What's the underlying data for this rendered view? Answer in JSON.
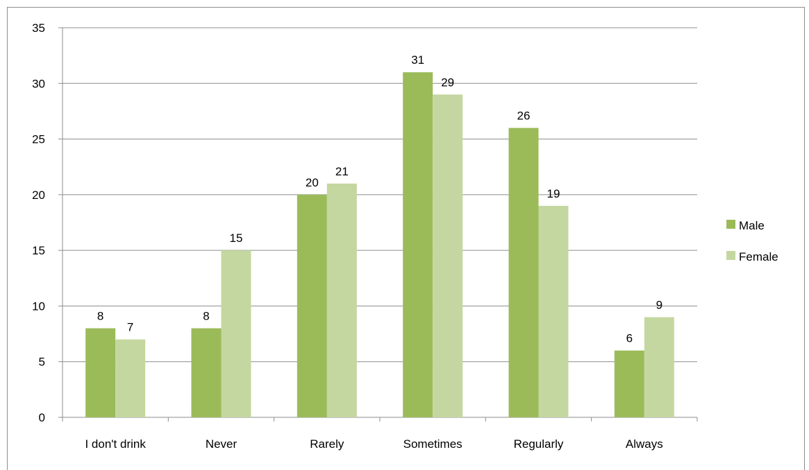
{
  "chart_data": {
    "type": "bar",
    "categories": [
      "I don't drink",
      "Never",
      "Rarely",
      "Sometimes",
      "Regularly",
      "Always"
    ],
    "series": [
      {
        "name": "Male",
        "values": [
          8,
          8,
          20,
          31,
          26,
          6
        ],
        "color": "#9bbb59"
      },
      {
        "name": "Female",
        "values": [
          7,
          15,
          21,
          29,
          19,
          9
        ],
        "color": "#c4d7a0"
      }
    ],
    "ylim": [
      0,
      35
    ],
    "yticks": [
      0,
      5,
      10,
      15,
      20,
      25,
      30,
      35
    ],
    "grid": true,
    "data_labels": true,
    "legend_position": "right",
    "title": "",
    "xlabel": "",
    "ylabel": ""
  },
  "colors": {
    "gridline": "#8c8c8c",
    "axis": "#8c8c8c"
  }
}
